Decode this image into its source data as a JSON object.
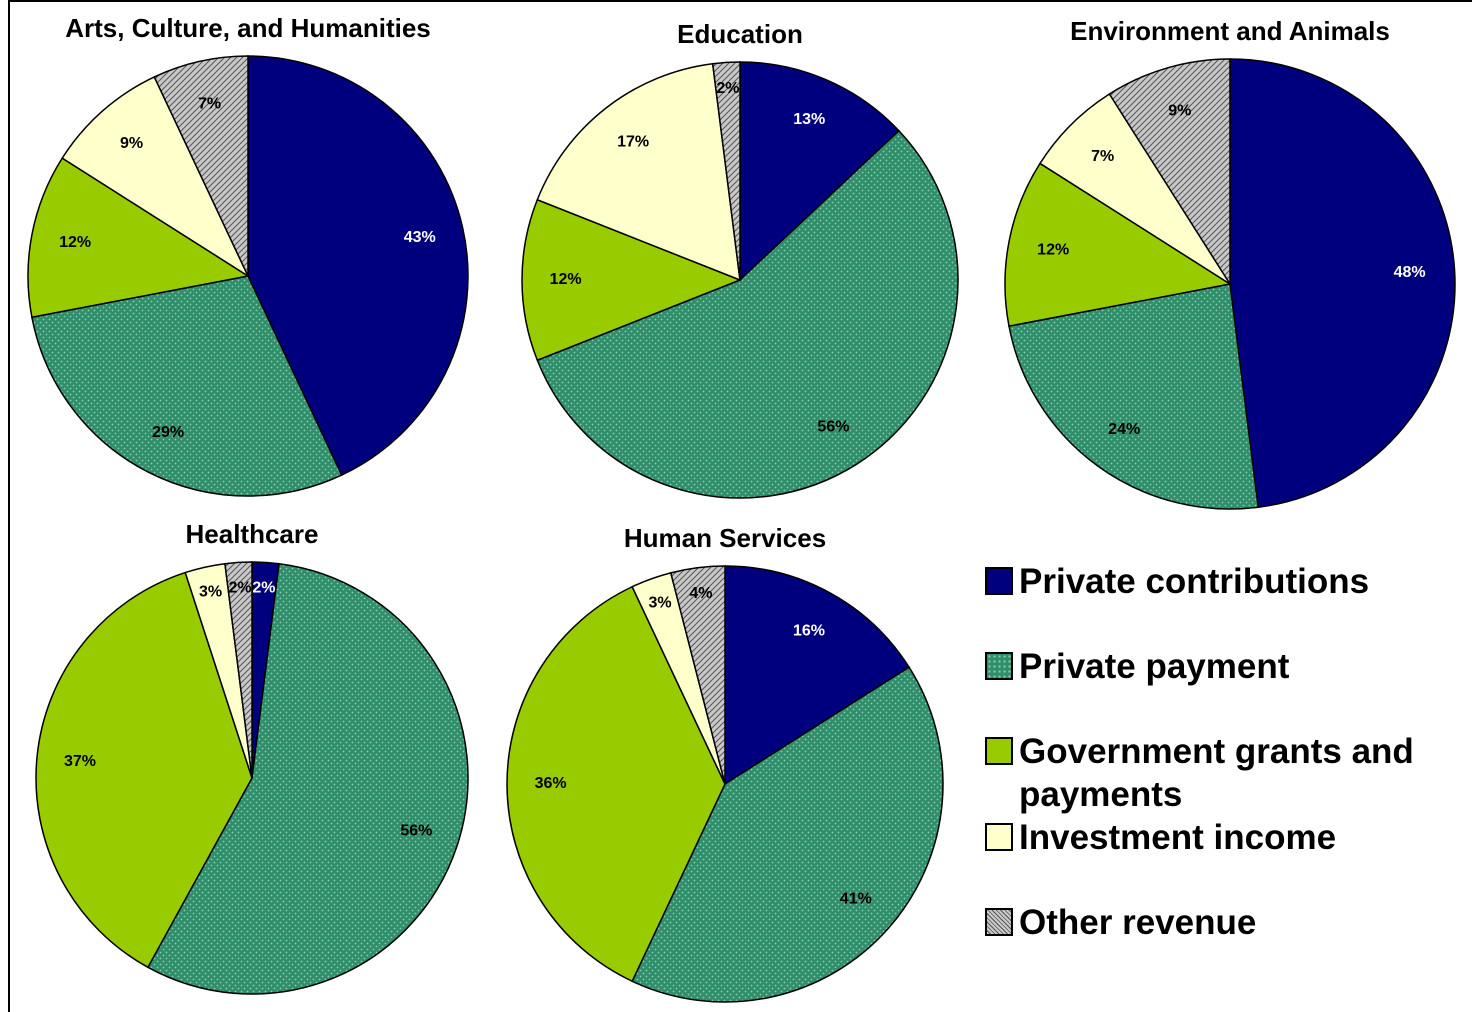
{
  "legend": {
    "items": [
      "Private contributions",
      "Private payment",
      "Government grants and payments",
      "Investment income",
      "Other revenue"
    ],
    "colors": [
      "#00007f",
      "#2f8f6a",
      "#99cc00",
      "#ffffcc",
      "#c8c8c8"
    ],
    "patterns": [
      "solid",
      "dots",
      "solid",
      "solid",
      "hatch"
    ]
  },
  "chart_data": [
    {
      "type": "pie",
      "title": "Arts, Culture, and Humanities",
      "values": [
        43,
        29,
        12,
        9,
        7
      ],
      "value_labels": [
        "43%",
        "29%",
        "12%",
        "9%",
        "7%"
      ]
    },
    {
      "type": "pie",
      "title": "Education",
      "values": [
        13,
        56,
        12,
        17,
        2
      ],
      "value_labels": [
        "13%",
        "56%",
        "12%",
        "17%",
        "2%"
      ]
    },
    {
      "type": "pie",
      "title": "Environment and Animals",
      "values": [
        48,
        24,
        12,
        7,
        9
      ],
      "value_labels": [
        "48%",
        "24%",
        "12%",
        "7%",
        "9%"
      ]
    },
    {
      "type": "pie",
      "title": "Healthcare",
      "values": [
        2,
        56,
        37,
        3,
        2
      ],
      "value_labels": [
        "2%",
        "56%",
        "37%",
        "3%",
        "2%"
      ]
    },
    {
      "type": "pie",
      "title": "Human Services",
      "values": [
        16,
        41,
        36,
        3,
        4
      ],
      "value_labels": [
        "16%",
        "41%",
        "36%",
        "3%",
        "4%"
      ]
    }
  ]
}
